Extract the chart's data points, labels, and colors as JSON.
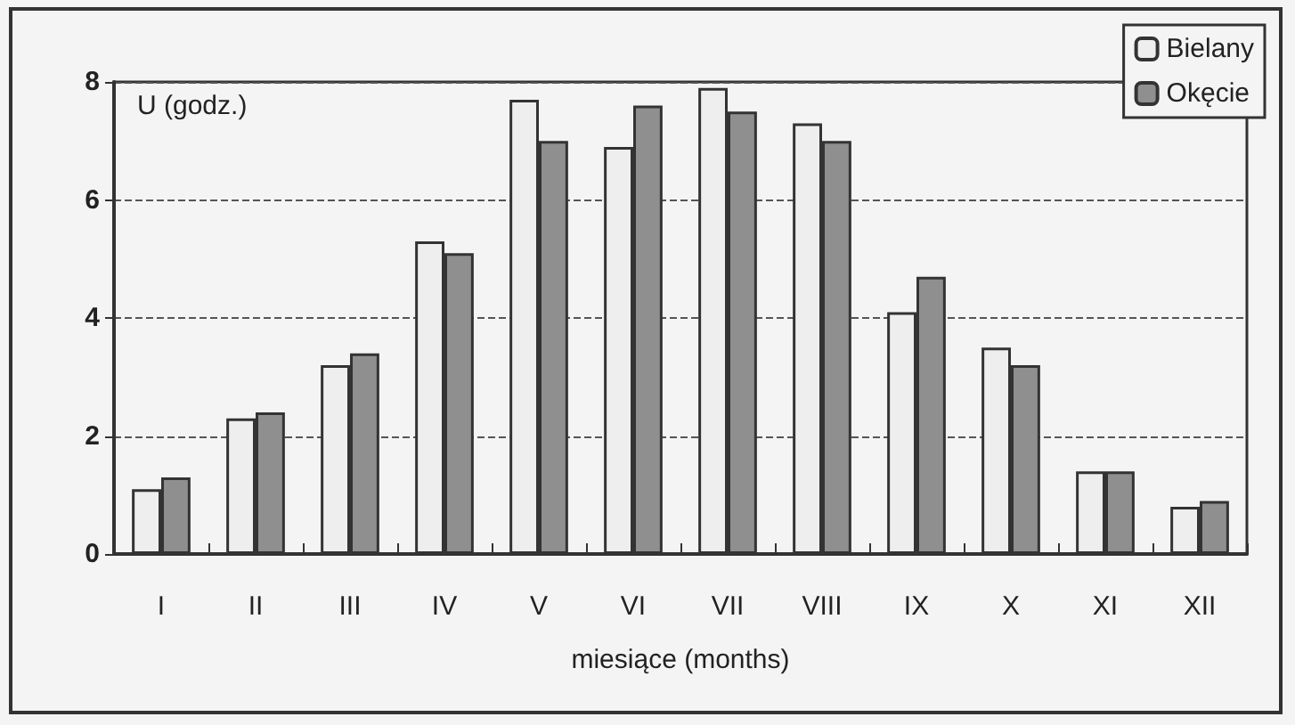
{
  "chart_data": {
    "type": "bar",
    "xlabel": "miesiące (months)",
    "ylabel": "U (godz.)",
    "categories": [
      "I",
      "II",
      "III",
      "IV",
      "V",
      "VI",
      "VII",
      "VIII",
      "IX",
      "X",
      "XI",
      "XII"
    ],
    "series": [
      {
        "name": "Bielany",
        "color": "#eeeeee",
        "values": [
          1.1,
          2.3,
          3.2,
          5.3,
          7.7,
          6.9,
          7.9,
          7.3,
          4.1,
          3.5,
          1.4,
          0.8
        ]
      },
      {
        "name": "Okęcie",
        "color": "#8f8f8f",
        "values": [
          1.3,
          2.4,
          3.4,
          5.1,
          7.0,
          7.6,
          7.5,
          7.0,
          4.7,
          3.2,
          1.4,
          0.9
        ]
      }
    ],
    "ylim": [
      0,
      8
    ],
    "yticks": [
      0,
      2,
      4,
      6,
      8
    ],
    "grid": "y",
    "legend": "top right"
  }
}
